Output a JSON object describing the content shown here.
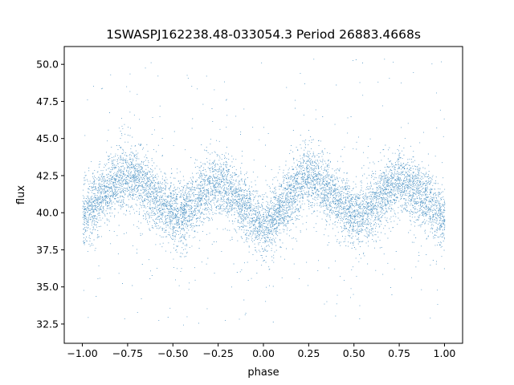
{
  "chart_data": {
    "type": "scatter",
    "title": "1SWASPJ162238.48-033054.3 Period 26883.4668s",
    "xlabel": "phase",
    "ylabel": "flux",
    "xlim": [
      -1.1,
      1.1
    ],
    "ylim": [
      31.2,
      51.2
    ],
    "xticks": [
      -1.0,
      -0.75,
      -0.5,
      -0.25,
      0.0,
      0.25,
      0.5,
      0.75,
      1.0
    ],
    "xtick_labels": [
      "−1.00",
      "−0.75",
      "−0.50",
      "−0.25",
      "0.00",
      "0.25",
      "0.50",
      "0.75",
      "1.00"
    ],
    "yticks": [
      32.5,
      35.0,
      37.5,
      40.0,
      42.5,
      45.0,
      47.5,
      50.0
    ],
    "ytick_labels": [
      "32.5",
      "35.0",
      "37.5",
      "40.0",
      "42.5",
      "45.0",
      "47.5",
      "50.0"
    ],
    "grid": false,
    "legend": "none",
    "color": "#1f77b4",
    "series": [
      {
        "description_of_trend": "phase-folded light curve, dense band around 40.5 with double-humped modulation",
        "x": [
          -1.0,
          -0.9,
          -0.8,
          -0.75,
          -0.7,
          -0.6,
          -0.5,
          -0.45,
          -0.4,
          -0.3,
          -0.25,
          -0.2,
          -0.1,
          0.0,
          0.05,
          0.1,
          0.2,
          0.25,
          0.3,
          0.4,
          0.5,
          0.55,
          0.6,
          0.7,
          0.75,
          0.8,
          0.9,
          1.0
        ],
        "y": [
          39.8,
          41.1,
          42.2,
          42.5,
          42.3,
          41.0,
          39.9,
          39.8,
          40.3,
          41.8,
          42.0,
          41.6,
          40.2,
          39.0,
          39.5,
          40.4,
          41.9,
          42.5,
          42.1,
          40.9,
          39.8,
          39.9,
          40.5,
          41.8,
          42.2,
          41.9,
          40.8,
          39.6
        ]
      }
    ]
  }
}
